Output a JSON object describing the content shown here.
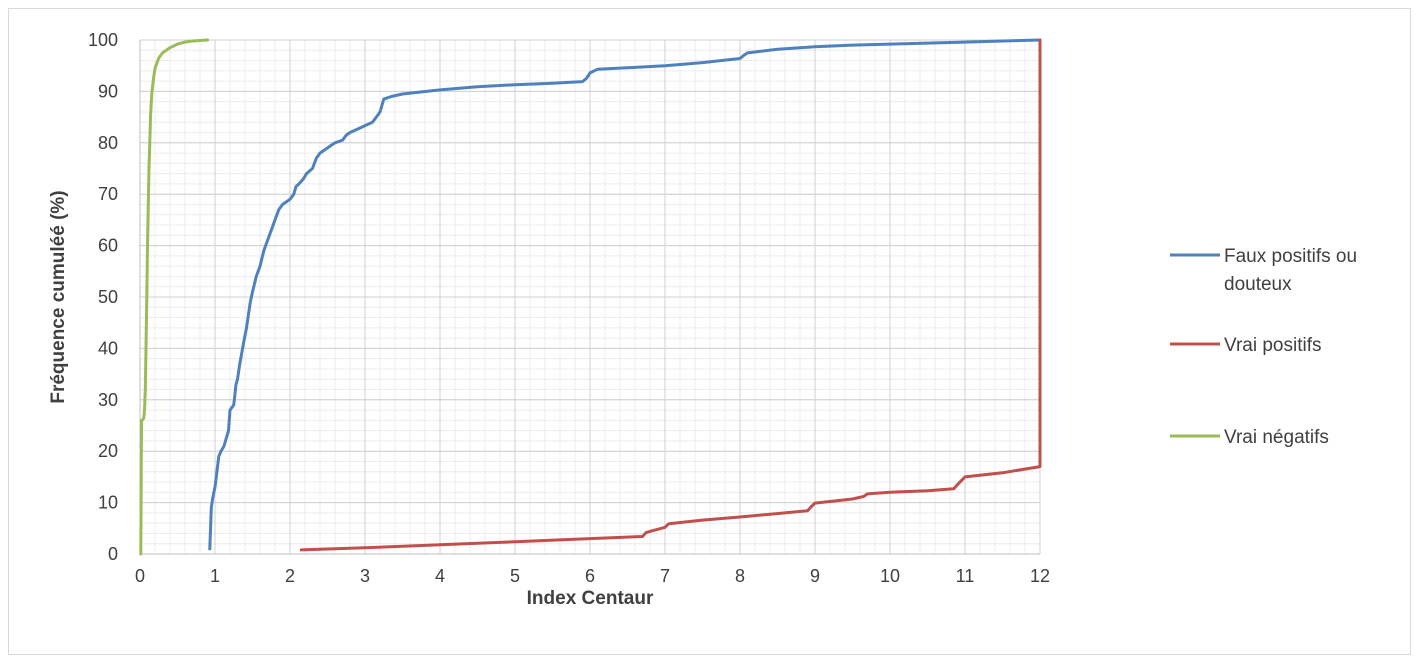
{
  "chart_data": {
    "type": "line",
    "xlabel": "Index Centaur",
    "ylabel": "Fréquence cumuléé (%)",
    "xlim": [
      0,
      12
    ],
    "ylim": [
      0,
      100
    ],
    "x_ticks": [
      "0",
      "1",
      "2",
      "3",
      "4",
      "5",
      "6",
      "7",
      "8",
      "9",
      "10",
      "11",
      "12"
    ],
    "y_ticks": [
      "0",
      "10",
      "20",
      "30",
      "40",
      "50",
      "60",
      "70",
      "80",
      "90",
      "100"
    ],
    "grid": true,
    "legend_position": "right",
    "series": [
      {
        "name": "Faux positifs ou douteux",
        "color": "#4F81BD",
        "x": [
          0.93,
          0.95,
          0.97,
          1.0,
          1.05,
          1.08,
          1.12,
          1.18,
          1.2,
          1.25,
          1.28,
          1.3,
          1.33,
          1.38,
          1.42,
          1.47,
          1.5,
          1.55,
          1.6,
          1.65,
          1.7,
          1.75,
          1.8,
          1.85,
          1.9,
          1.95,
          2.0,
          2.05,
          2.08,
          2.12,
          2.18,
          2.22,
          2.3,
          2.35,
          2.4,
          2.5,
          2.6,
          2.7,
          2.75,
          2.8,
          2.95,
          3.1,
          3.15,
          3.2,
          3.25,
          3.35,
          3.5,
          4.0,
          4.5,
          5.0,
          5.5,
          5.9,
          5.95,
          6.0,
          6.1,
          6.5,
          7.0,
          7.5,
          8.0,
          8.05,
          8.1,
          8.5,
          9.0,
          9.5,
          10.0,
          10.5,
          11.0,
          11.5,
          12.0
        ],
        "values": [
          1,
          9,
          11,
          13,
          19,
          20,
          21,
          24,
          28,
          29,
          33,
          34,
          37,
          41,
          44,
          49,
          51,
          54,
          56,
          59,
          61,
          63,
          65,
          67,
          68,
          68.5,
          69,
          70,
          71.5,
          72,
          73,
          74,
          75,
          77,
          78,
          79,
          80,
          80.5,
          81.5,
          82,
          83,
          84,
          85,
          86,
          88.5,
          89,
          89.5,
          90.3,
          90.9,
          91.3,
          91.6,
          91.9,
          92.5,
          93.6,
          94.3,
          94.6,
          95,
          95.6,
          96.4,
          97,
          97.5,
          98.2,
          98.7,
          99,
          99.2,
          99.4,
          99.6,
          99.8,
          100
        ]
      },
      {
        "name": "Vrai positifs",
        "color": "#C0504D",
        "x": [
          2.15,
          3,
          4,
          5,
          6,
          6.7,
          6.75,
          7.0,
          7.05,
          7.5,
          8.0,
          8.9,
          8.95,
          9.0,
          9.5,
          9.65,
          9.7,
          10.0,
          10.5,
          10.85,
          10.9,
          11.0,
          11.5,
          12.0,
          12.0,
          12.0
        ],
        "values": [
          0.8,
          1.2,
          1.8,
          2.4,
          3.0,
          3.4,
          4.2,
          5.2,
          5.9,
          6.6,
          7.2,
          8.4,
          9.2,
          9.9,
          10.7,
          11.2,
          11.7,
          12.0,
          12.3,
          12.7,
          13.5,
          15,
          15.8,
          17,
          60,
          100
        ]
      },
      {
        "name": "Vrai négatifs",
        "color": "#9BBB59",
        "x": [
          0.01,
          0.02,
          0.03,
          0.05,
          0.06,
          0.07,
          0.08,
          0.09,
          0.1,
          0.11,
          0.12,
          0.13,
          0.14,
          0.15,
          0.16,
          0.18,
          0.2,
          0.25,
          0.3,
          0.4,
          0.5,
          0.6,
          0.7,
          0.8,
          0.9
        ],
        "values": [
          0,
          26,
          26,
          26.5,
          28,
          32,
          40,
          50,
          60,
          68,
          75,
          80,
          85,
          88,
          90,
          92.5,
          94.5,
          96.5,
          97.5,
          98.5,
          99.2,
          99.6,
          99.8,
          99.9,
          100
        ]
      }
    ]
  }
}
